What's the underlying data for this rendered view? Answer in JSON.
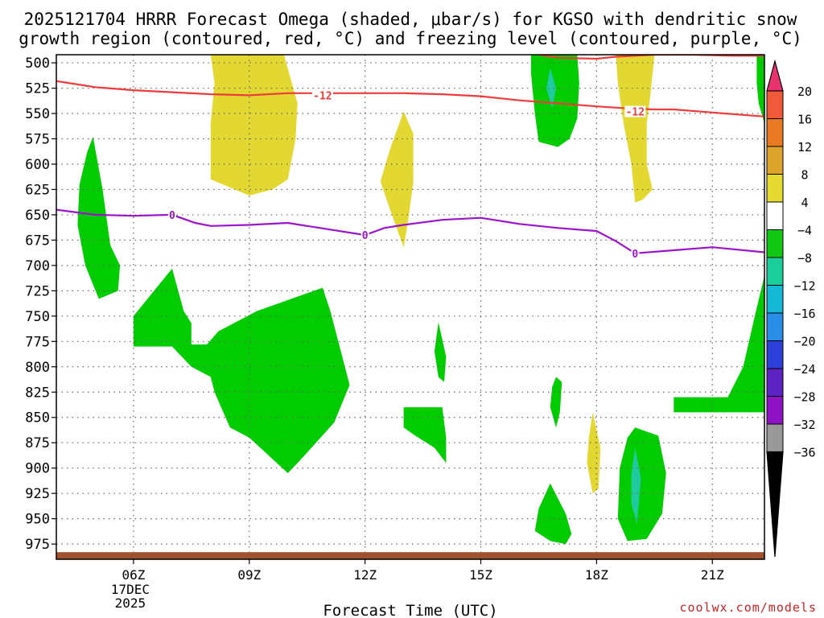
{
  "chart_data": {
    "type": "heatmap",
    "title_line1": "2025121704 HRRR Forecast Omega (shaded, μbar/s) for KGSO with dendritic snow",
    "title_line2": "growth region (contoured, red, °C) and freezing level (contoured, purple, °C)",
    "xlabel": "Forecast Time (UTC)",
    "credit": "coolwx.com/models",
    "x_range": [
      4.0,
      22.35
    ],
    "y_range": [
      492,
      990
    ],
    "y_scale": "linear-pressure-inverted",
    "grid": "dotted",
    "y_ticks": [
      500,
      525,
      550,
      575,
      600,
      625,
      650,
      675,
      700,
      725,
      750,
      775,
      800,
      825,
      850,
      875,
      900,
      925,
      950,
      975
    ],
    "x_ticks": [
      {
        "hour": 6,
        "label": "06Z",
        "sub": [
          "17DEC",
          "2025"
        ]
      },
      {
        "hour": 9,
        "label": "09Z"
      },
      {
        "hour": 12,
        "label": "12Z"
      },
      {
        "hour": 15,
        "label": "15Z"
      },
      {
        "hour": 18,
        "label": "18Z"
      },
      {
        "hour": 21,
        "label": "21Z"
      }
    ],
    "colorbar": {
      "labels": [
        "20",
        "16",
        "12",
        "8",
        "4",
        "−4",
        "−8",
        "−12",
        "−16",
        "−20",
        "−24",
        "−28",
        "−32",
        "−36"
      ],
      "colors": [
        "#e8336e",
        "#ef5a3a",
        "#e97a22",
        "#dea52e",
        "#e5da2f",
        "#ffffff",
        "#12c812",
        "#1ccf9a",
        "#15b8d6",
        "#2a8de8",
        "#2c3fd6",
        "#5d22c2",
        "#8d13c4",
        "#999999",
        "#000000"
      ]
    },
    "omega_colors": {
      "yellow": "#e2d831",
      "green": "#00cc00",
      "teal": "#20c9a0"
    },
    "regions": [
      {
        "name": "omega-yellow-09z",
        "color": "yellow",
        "points": [
          [
            8.0,
            492
          ],
          [
            9.9,
            492
          ],
          [
            10.25,
            540
          ],
          [
            10.2,
            575
          ],
          [
            10.0,
            615
          ],
          [
            9.6,
            625
          ],
          [
            9.0,
            631
          ],
          [
            8.0,
            615
          ],
          [
            8.0,
            560
          ],
          [
            8.1,
            520
          ]
        ]
      },
      {
        "name": "omega-yellow-13z",
        "color": "yellow",
        "points": [
          [
            13.0,
            548
          ],
          [
            13.25,
            570
          ],
          [
            13.25,
            618
          ],
          [
            13.1,
            660
          ],
          [
            13.0,
            682
          ],
          [
            12.65,
            645
          ],
          [
            12.4,
            617
          ],
          [
            12.65,
            585
          ]
        ]
      },
      {
        "name": "omega-green-16z",
        "color": "green",
        "points": [
          [
            16.3,
            492
          ],
          [
            17.5,
            492
          ],
          [
            17.55,
            520
          ],
          [
            17.5,
            555
          ],
          [
            17.3,
            575
          ],
          [
            17.0,
            583
          ],
          [
            16.5,
            578
          ],
          [
            16.4,
            550
          ],
          [
            16.3,
            510
          ]
        ]
      },
      {
        "name": "omega-teal-16z",
        "color": "teal",
        "points": [
          [
            16.8,
            505
          ],
          [
            16.95,
            525
          ],
          [
            16.85,
            545
          ],
          [
            16.7,
            525
          ]
        ]
      },
      {
        "name": "omega-yellow-19z",
        "color": "yellow",
        "points": [
          [
            18.5,
            492
          ],
          [
            19.5,
            492
          ],
          [
            19.4,
            530
          ],
          [
            19.3,
            560
          ],
          [
            19.3,
            600
          ],
          [
            19.45,
            625
          ],
          [
            19.2,
            635
          ],
          [
            19.0,
            638
          ],
          [
            18.9,
            600
          ],
          [
            18.7,
            560
          ],
          [
            18.55,
            520
          ]
        ]
      },
      {
        "name": "omega-green-right-top",
        "color": "green",
        "points": [
          [
            22.15,
            492
          ],
          [
            22.35,
            492
          ],
          [
            22.35,
            560
          ],
          [
            22.2,
            540
          ],
          [
            22.15,
            520
          ]
        ]
      },
      {
        "name": "omega-green-05z",
        "color": "green",
        "points": [
          [
            4.95,
            573
          ],
          [
            5.2,
            625
          ],
          [
            5.4,
            680
          ],
          [
            5.65,
            700
          ],
          [
            5.6,
            725
          ],
          [
            5.1,
            733
          ],
          [
            4.75,
            700
          ],
          [
            4.55,
            660
          ],
          [
            4.6,
            620
          ],
          [
            4.8,
            588
          ]
        ]
      },
      {
        "name": "omega-green-07z",
        "color": "green",
        "points": [
          [
            6.0,
            750
          ],
          [
            7.0,
            703
          ],
          [
            7.3,
            745
          ],
          [
            7.5,
            757
          ],
          [
            7.5,
            778
          ],
          [
            7.9,
            778
          ],
          [
            8.2,
            765
          ],
          [
            9.2,
            745
          ],
          [
            10.9,
            722
          ],
          [
            11.1,
            745
          ],
          [
            11.6,
            818
          ],
          [
            11.2,
            855
          ],
          [
            10.8,
            872
          ],
          [
            10.3,
            893
          ],
          [
            10.0,
            905
          ],
          [
            9.0,
            870
          ],
          [
            8.5,
            860
          ],
          [
            8.1,
            825
          ],
          [
            8.0,
            810
          ],
          [
            7.5,
            800
          ],
          [
            7.0,
            780
          ],
          [
            6.0,
            780
          ]
        ]
      },
      {
        "name": "omega-green-14z-upper",
        "color": "green",
        "points": [
          [
            13.9,
            756
          ],
          [
            14.1,
            790
          ],
          [
            14.05,
            815
          ],
          [
            13.9,
            810
          ],
          [
            13.8,
            785
          ]
        ]
      },
      {
        "name": "omega-green-13z-lower",
        "color": "green",
        "points": [
          [
            13.0,
            840
          ],
          [
            14.0,
            840
          ],
          [
            14.1,
            870
          ],
          [
            14.1,
            895
          ],
          [
            13.8,
            880
          ],
          [
            13.3,
            868
          ],
          [
            13.0,
            860
          ]
        ]
      },
      {
        "name": "omega-green-17z-mid",
        "color": "green",
        "points": [
          [
            16.95,
            810
          ],
          [
            17.1,
            815
          ],
          [
            17.05,
            845
          ],
          [
            16.95,
            860
          ],
          [
            16.8,
            840
          ],
          [
            16.85,
            820
          ]
        ]
      },
      {
        "name": "omega-yellow-18z",
        "color": "yellow",
        "points": [
          [
            17.9,
            845
          ],
          [
            18.1,
            880
          ],
          [
            18.05,
            920
          ],
          [
            17.9,
            925
          ],
          [
            17.75,
            895
          ],
          [
            17.8,
            870
          ]
        ]
      },
      {
        "name": "omega-green-17z-lower",
        "color": "green",
        "points": [
          [
            16.8,
            915
          ],
          [
            17.2,
            945
          ],
          [
            17.35,
            965
          ],
          [
            17.2,
            975
          ],
          [
            16.8,
            972
          ],
          [
            16.4,
            962
          ],
          [
            16.5,
            940
          ]
        ]
      },
      {
        "name": "omega-green-19z",
        "color": "green",
        "points": [
          [
            19.0,
            860
          ],
          [
            19.6,
            868
          ],
          [
            19.8,
            905
          ],
          [
            19.7,
            945
          ],
          [
            19.3,
            970
          ],
          [
            18.8,
            972
          ],
          [
            18.55,
            950
          ],
          [
            18.6,
            900
          ],
          [
            18.8,
            870
          ]
        ]
      },
      {
        "name": "omega-teal-19z",
        "color": "teal",
        "points": [
          [
            19.0,
            880
          ],
          [
            19.15,
            910
          ],
          [
            19.05,
            955
          ],
          [
            18.9,
            935
          ],
          [
            18.9,
            905
          ]
        ]
      },
      {
        "name": "omega-green-21z",
        "color": "green",
        "points": [
          [
            20.0,
            830
          ],
          [
            20.0,
            845
          ],
          [
            22.35,
            845
          ],
          [
            22.35,
            710
          ],
          [
            22.1,
            750
          ],
          [
            21.8,
            800
          ],
          [
            21.4,
            830
          ]
        ]
      }
    ],
    "red_contour": {
      "label": "-12",
      "label_positions": [
        [
          10.9,
          532
        ],
        [
          19.0,
          548
        ]
      ],
      "segments": [
        [
          [
            4.0,
            518
          ],
          [
            4.5,
            521
          ],
          [
            5.0,
            524
          ],
          [
            6.0,
            527
          ],
          [
            7.0,
            529
          ],
          [
            8.0,
            531
          ],
          [
            9.0,
            532
          ],
          [
            10.0,
            530
          ],
          [
            10.8,
            530
          ],
          [
            12.0,
            530
          ],
          [
            13.0,
            530
          ],
          [
            14.0,
            531
          ],
          [
            15.0,
            533
          ],
          [
            16.0,
            537
          ],
          [
            17.0,
            540
          ],
          [
            18.0,
            543
          ],
          [
            18.8,
            545
          ],
          [
            19.5,
            546
          ],
          [
            20.0,
            546
          ],
          [
            21.0,
            549
          ],
          [
            22.35,
            553
          ]
        ],
        [
          [
            16.5,
            492
          ],
          [
            17.0,
            495
          ],
          [
            18.0,
            496
          ],
          [
            18.5,
            494
          ],
          [
            19.5,
            492
          ],
          [
            20.5,
            492
          ],
          [
            21.5,
            493
          ],
          [
            22.35,
            493
          ]
        ]
      ]
    },
    "purple_contour": {
      "label": "0",
      "label_positions": [
        [
          7.0,
          650
        ],
        [
          12.0,
          670
        ],
        [
          19.0,
          688
        ]
      ],
      "points": [
        [
          4.0,
          645
        ],
        [
          5.0,
          650
        ],
        [
          6.0,
          651
        ],
        [
          7.0,
          650
        ],
        [
          7.6,
          658
        ],
        [
          8.0,
          661
        ],
        [
          9.0,
          660
        ],
        [
          10.0,
          658
        ],
        [
          11.0,
          664
        ],
        [
          12.0,
          670
        ],
        [
          12.5,
          663
        ],
        [
          13.0,
          660
        ],
        [
          14.0,
          655
        ],
        [
          15.0,
          653
        ],
        [
          16.0,
          659
        ],
        [
          17.0,
          663
        ],
        [
          18.0,
          666
        ],
        [
          18.5,
          676
        ],
        [
          19.0,
          688
        ],
        [
          20.0,
          685
        ],
        [
          21.0,
          682
        ],
        [
          22.35,
          687
        ]
      ]
    },
    "terrain": {
      "color": "#a0522d",
      "top_pressure": 983,
      "bottom_pressure": 990
    }
  }
}
